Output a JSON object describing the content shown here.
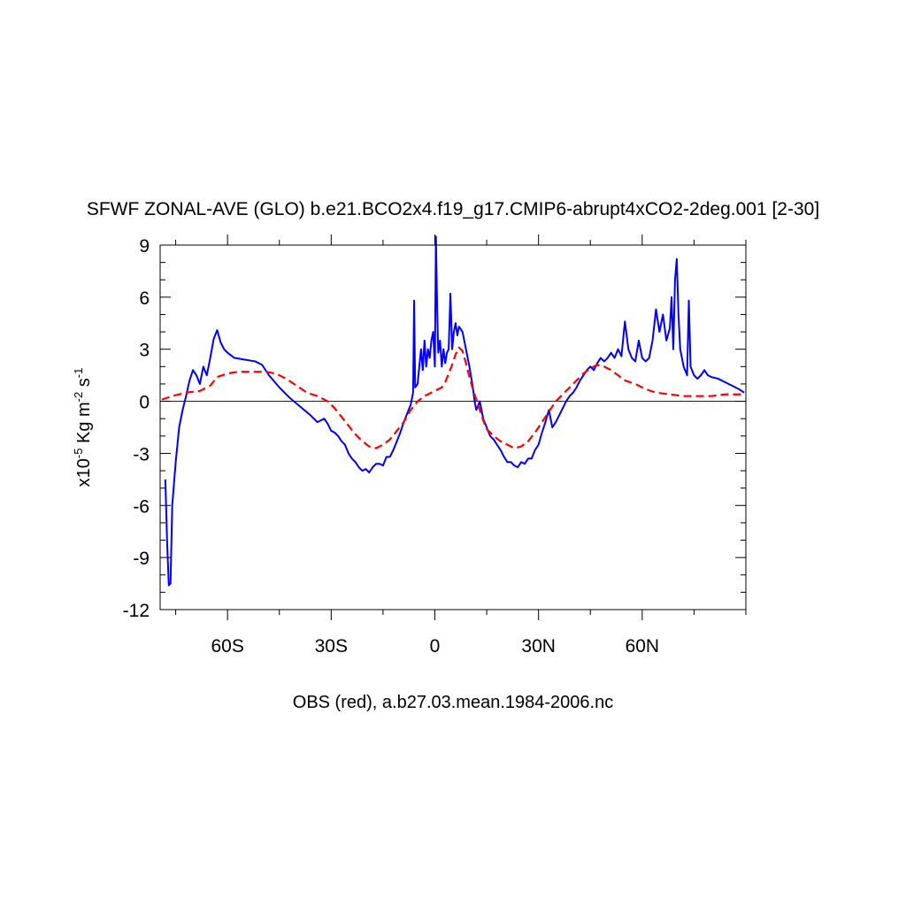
{
  "chart_data": {
    "type": "line",
    "title": "SFWF ZONAL-AVE (GLO) b.e21.BCO2x4.f19_g17.CMIP6-abrupt4xCO2-2deg.001 [2-30]",
    "ylabel_parts": {
      "base": "x10",
      "exp": "-5",
      "mid1": " Kg m",
      "exp2": "-2",
      "mid2": " s",
      "exp3": "-1"
    },
    "xlabel": "OBS (red), a.b27.03.mean.1984-2006.nc",
    "xlim": [
      -79.5,
      90
    ],
    "ylim": [
      -12,
      9
    ],
    "y_ticks": [
      9,
      6,
      3,
      0,
      -3,
      -6,
      -9,
      -12
    ],
    "y_tick_labels": [
      "9",
      "6",
      "3",
      "0",
      "-3",
      "-6",
      "-9",
      "-12"
    ],
    "x_ticks": [
      -60,
      -30,
      0,
      30,
      60
    ],
    "x_tick_labels": [
      "60S",
      "30S",
      "0",
      "30N",
      "60N"
    ],
    "zero_line": true,
    "colors": {
      "model": "#0000ff",
      "obs": "#ff0000",
      "axis": "#000000",
      "zero": "#000000"
    },
    "series": [
      {
        "name": "model",
        "style": "solid",
        "points": [
          [
            -78,
            -4.5
          ],
          [
            -77.5,
            -8
          ],
          [
            -77,
            -10.6
          ],
          [
            -76.5,
            -10.5
          ],
          [
            -76,
            -6
          ],
          [
            -75,
            -3.5
          ],
          [
            -74,
            -1.5
          ],
          [
            -73,
            -0.5
          ],
          [
            -72,
            0.3
          ],
          [
            -71,
            1.2
          ],
          [
            -70,
            1.8
          ],
          [
            -69,
            1.5
          ],
          [
            -68,
            1.0
          ],
          [
            -67,
            2.0
          ],
          [
            -66,
            1.5
          ],
          [
            -65,
            2.5
          ],
          [
            -64,
            3.6
          ],
          [
            -63,
            4.1
          ],
          [
            -62,
            3.4
          ],
          [
            -61,
            3.0
          ],
          [
            -60,
            2.8
          ],
          [
            -58,
            2.5
          ],
          [
            -55,
            2.4
          ],
          [
            -52,
            2.3
          ],
          [
            -50,
            2.1
          ],
          [
            -48,
            1.5
          ],
          [
            -45,
            0.8
          ],
          [
            -42,
            0.2
          ],
          [
            -39,
            -0.3
          ],
          [
            -36,
            -0.8
          ],
          [
            -34,
            -1.2
          ],
          [
            -32,
            -1.0
          ],
          [
            -31,
            -1.3
          ],
          [
            -30,
            -1.7
          ],
          [
            -29,
            -1.8
          ],
          [
            -28,
            -2.0
          ],
          [
            -27,
            -2.3
          ],
          [
            -26,
            -2.5
          ],
          [
            -25,
            -3.0
          ],
          [
            -24,
            -3.3
          ],
          [
            -23,
            -3.5
          ],
          [
            -22,
            -3.8
          ],
          [
            -21,
            -4.0
          ],
          [
            -20,
            -3.9
          ],
          [
            -19,
            -4.1
          ],
          [
            -18,
            -3.8
          ],
          [
            -17,
            -3.6
          ],
          [
            -16,
            -3.6
          ],
          [
            -15,
            -3.7
          ],
          [
            -14,
            -3.2
          ],
          [
            -13,
            -3.2
          ],
          [
            -12,
            -2.8
          ],
          [
            -11,
            -2.3
          ],
          [
            -10,
            -1.8
          ],
          [
            -9,
            -1.2
          ],
          [
            -8,
            -0.7
          ],
          [
            -7,
            -0.2
          ],
          [
            -6.3,
            0.5
          ],
          [
            -6,
            5.8
          ],
          [
            -5.7,
            0.8
          ],
          [
            -5,
            1.0
          ],
          [
            -4.5,
            2.0
          ],
          [
            -4,
            3.0
          ],
          [
            -3.5,
            1.8
          ],
          [
            -3,
            3.5
          ],
          [
            -2.5,
            2.0
          ],
          [
            -2,
            3.0
          ],
          [
            -1.5,
            2.5
          ],
          [
            -1,
            3.5
          ],
          [
            -0.5,
            4.0
          ],
          [
            0,
            2.0
          ],
          [
            0.3,
            9.5
          ],
          [
            0.7,
            5.0
          ],
          [
            1,
            2.8
          ],
          [
            1.5,
            3.5
          ],
          [
            2,
            2.0
          ],
          [
            2.5,
            3.0
          ],
          [
            3,
            2.2
          ],
          [
            3.5,
            2.8
          ],
          [
            4,
            3.0
          ],
          [
            4.5,
            6.2
          ],
          [
            5,
            3.0
          ],
          [
            5.5,
            4.0
          ],
          [
            6,
            4.5
          ],
          [
            6.5,
            3.8
          ],
          [
            7,
            4.3
          ],
          [
            8,
            4.0
          ],
          [
            9,
            3.0
          ],
          [
            10,
            2.0
          ],
          [
            11,
            0.8
          ],
          [
            11.5,
            0
          ],
          [
            12,
            -0.5
          ],
          [
            13,
            0
          ],
          [
            14,
            -1.0
          ],
          [
            15,
            -1.5
          ],
          [
            16,
            -2.0
          ],
          [
            17,
            -2.2
          ],
          [
            18,
            -2.5
          ],
          [
            19,
            -2.8
          ],
          [
            20,
            -3.2
          ],
          [
            21,
            -3.5
          ],
          [
            22,
            -3.5
          ],
          [
            23,
            -3.7
          ],
          [
            24,
            -3.8
          ],
          [
            25,
            -3.5
          ],
          [
            26,
            -3.6
          ],
          [
            27,
            -3.3
          ],
          [
            28,
            -3.3
          ],
          [
            29,
            -2.8
          ],
          [
            30,
            -2.5
          ],
          [
            31,
            -1.8
          ],
          [
            32,
            -1.2
          ],
          [
            33,
            -0.5
          ],
          [
            34,
            -1.5
          ],
          [
            35,
            -1.2
          ],
          [
            36,
            -0.8
          ],
          [
            37,
            -0.4
          ],
          [
            38,
            0
          ],
          [
            39,
            0.3
          ],
          [
            40,
            0.5
          ],
          [
            41,
            0.8
          ],
          [
            42,
            1.2
          ],
          [
            43,
            1.5
          ],
          [
            44,
            1.8
          ],
          [
            45,
            2.0
          ],
          [
            46,
            1.8
          ],
          [
            47,
            2.2
          ],
          [
            48,
            2.5
          ],
          [
            49,
            2.3
          ],
          [
            50,
            2.5
          ],
          [
            51,
            2.8
          ],
          [
            52,
            2.5
          ],
          [
            53,
            3.0
          ],
          [
            54,
            2.6
          ],
          [
            55,
            4.6
          ],
          [
            56,
            3.0
          ],
          [
            57,
            2.5
          ],
          [
            58,
            2.3
          ],
          [
            59,
            3.5
          ],
          [
            60,
            2.5
          ],
          [
            61,
            2.3
          ],
          [
            62,
            2.5
          ],
          [
            63,
            3.5
          ],
          [
            64,
            5.3
          ],
          [
            65,
            4.0
          ],
          [
            66,
            5.0
          ],
          [
            67,
            3.5
          ],
          [
            68,
            4.2
          ],
          [
            68.5,
            6.0
          ],
          [
            69,
            3.0
          ],
          [
            69.5,
            7.0
          ],
          [
            70,
            8.2
          ],
          [
            70.5,
            5.0
          ],
          [
            71,
            3.0
          ],
          [
            72,
            2.0
          ],
          [
            73,
            1.5
          ],
          [
            73.5,
            5.8
          ],
          [
            74,
            2.0
          ],
          [
            75,
            1.5
          ],
          [
            76,
            1.3
          ],
          [
            77,
            1.5
          ],
          [
            78,
            1.8
          ],
          [
            79,
            1.5
          ],
          [
            80,
            1.4
          ],
          [
            82,
            1.3
          ],
          [
            84,
            1.1
          ],
          [
            86,
            0.9
          ],
          [
            88,
            0.7
          ],
          [
            89.5,
            0.5
          ]
        ]
      },
      {
        "name": "obs",
        "style": "dashed",
        "points": [
          [
            -79,
            0.1
          ],
          [
            -76,
            0.3
          ],
          [
            -72,
            0.5
          ],
          [
            -68,
            0.6
          ],
          [
            -65,
            0.9
          ],
          [
            -63,
            1.4
          ],
          [
            -60,
            1.6
          ],
          [
            -57,
            1.7
          ],
          [
            -53,
            1.7
          ],
          [
            -49,
            1.7
          ],
          [
            -46,
            1.6
          ],
          [
            -43,
            1.3
          ],
          [
            -40,
            0.9
          ],
          [
            -37,
            0.5
          ],
          [
            -34,
            0.3
          ],
          [
            -31,
            0
          ],
          [
            -29,
            -0.4
          ],
          [
            -27,
            -0.9
          ],
          [
            -25,
            -1.4
          ],
          [
            -23,
            -1.9
          ],
          [
            -21,
            -2.3
          ],
          [
            -19,
            -2.6
          ],
          [
            -17,
            -2.7
          ],
          [
            -15,
            -2.5
          ],
          [
            -13,
            -2.2
          ],
          [
            -11,
            -1.7
          ],
          [
            -9,
            -1.2
          ],
          [
            -7,
            -0.5
          ],
          [
            -5,
            0
          ],
          [
            -3,
            0.3
          ],
          [
            -1,
            0.5
          ],
          [
            0,
            0.6
          ],
          [
            1,
            0.7
          ],
          [
            2,
            0.8
          ],
          [
            3,
            1.1
          ],
          [
            4,
            1.6
          ],
          [
            5,
            2.1
          ],
          [
            6,
            2.7
          ],
          [
            7,
            3.1
          ],
          [
            8,
            2.9
          ],
          [
            9,
            2.2
          ],
          [
            10,
            1.4
          ],
          [
            11,
            0.7
          ],
          [
            12,
            0.1
          ],
          [
            13,
            -0.5
          ],
          [
            14,
            -1.1
          ],
          [
            15,
            -1.6
          ],
          [
            17,
            -2.0
          ],
          [
            19,
            -2.3
          ],
          [
            21,
            -2.5
          ],
          [
            23,
            -2.7
          ],
          [
            25,
            -2.6
          ],
          [
            27,
            -2.3
          ],
          [
            29,
            -1.8
          ],
          [
            31,
            -1.2
          ],
          [
            33,
            -0.6
          ],
          [
            35,
            0
          ],
          [
            37,
            0.4
          ],
          [
            39,
            0.8
          ],
          [
            41,
            1.2
          ],
          [
            43,
            1.6
          ],
          [
            45,
            1.9
          ],
          [
            47,
            2.1
          ],
          [
            49,
            2.0
          ],
          [
            51,
            1.8
          ],
          [
            53,
            1.5
          ],
          [
            55,
            1.2
          ],
          [
            58,
            1.0
          ],
          [
            61,
            0.7
          ],
          [
            64,
            0.5
          ],
          [
            68,
            0.4
          ],
          [
            72,
            0.3
          ],
          [
            76,
            0.3
          ],
          [
            80,
            0.3
          ],
          [
            84,
            0.4
          ],
          [
            89.5,
            0.4
          ]
        ]
      }
    ]
  }
}
